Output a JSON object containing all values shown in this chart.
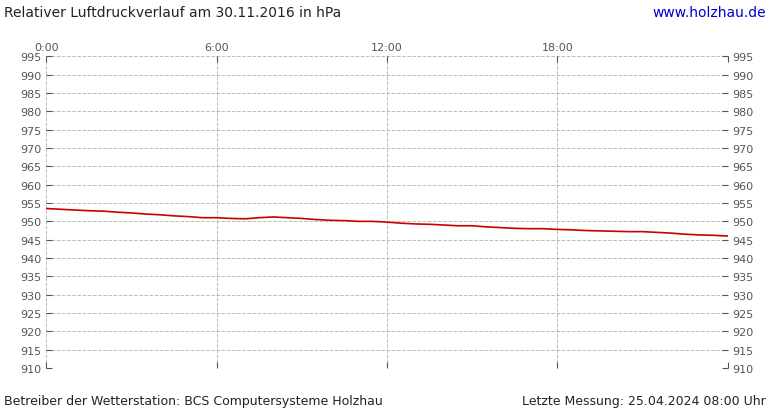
{
  "title": "Relativer Luftdruckverlauf am 30.11.2016 in hPa",
  "url_text": "www.holzhau.de",
  "url_color": "#0000cc",
  "footer_left": "Betreiber der Wetterstation: BCS Computersysteme Holzhau",
  "footer_right": "Letzte Messung: 25.04.2024 08:00 Uhr",
  "background_color": "#ffffff",
  "plot_bg_color": "#ffffff",
  "line_color": "#cc0000",
  "line_width": 1.2,
  "ylim": [
    910,
    995
  ],
  "ytick_min": 910,
  "ytick_max": 995,
  "ytick_step": 5,
  "xlim": [
    0,
    1440
  ],
  "xtick_positions": [
    0,
    360,
    720,
    1080,
    1440
  ],
  "xtick_labels": [
    "0:00",
    "6:00",
    "12:00",
    "18:00",
    ""
  ],
  "grid_color": "#aaaaaa",
  "grid_style": "--",
  "grid_alpha": 0.8,
  "title_fontsize": 10,
  "tick_fontsize": 8,
  "footer_fontsize": 9,
  "pressure_data_x": [
    0,
    30,
    60,
    90,
    120,
    150,
    180,
    210,
    240,
    270,
    300,
    330,
    360,
    390,
    420,
    450,
    480,
    510,
    540,
    570,
    600,
    630,
    660,
    690,
    720,
    750,
    780,
    810,
    840,
    870,
    900,
    930,
    960,
    990,
    1020,
    1050,
    1080,
    1110,
    1140,
    1170,
    1200,
    1230,
    1260,
    1290,
    1320,
    1350,
    1380,
    1410,
    1440
  ],
  "pressure_data_y": [
    953.5,
    953.3,
    953.1,
    952.9,
    952.8,
    952.5,
    952.3,
    952.0,
    951.8,
    951.5,
    951.3,
    951.0,
    951.0,
    950.8,
    950.7,
    951.0,
    951.2,
    951.0,
    950.8,
    950.5,
    950.3,
    950.2,
    950.0,
    950.0,
    949.8,
    949.5,
    949.3,
    949.2,
    949.0,
    948.8,
    948.8,
    948.5,
    948.3,
    948.1,
    948.0,
    948.0,
    947.8,
    947.7,
    947.5,
    947.4,
    947.3,
    947.2,
    947.2,
    947.0,
    946.8,
    946.5,
    946.3,
    946.2,
    946.0
  ]
}
